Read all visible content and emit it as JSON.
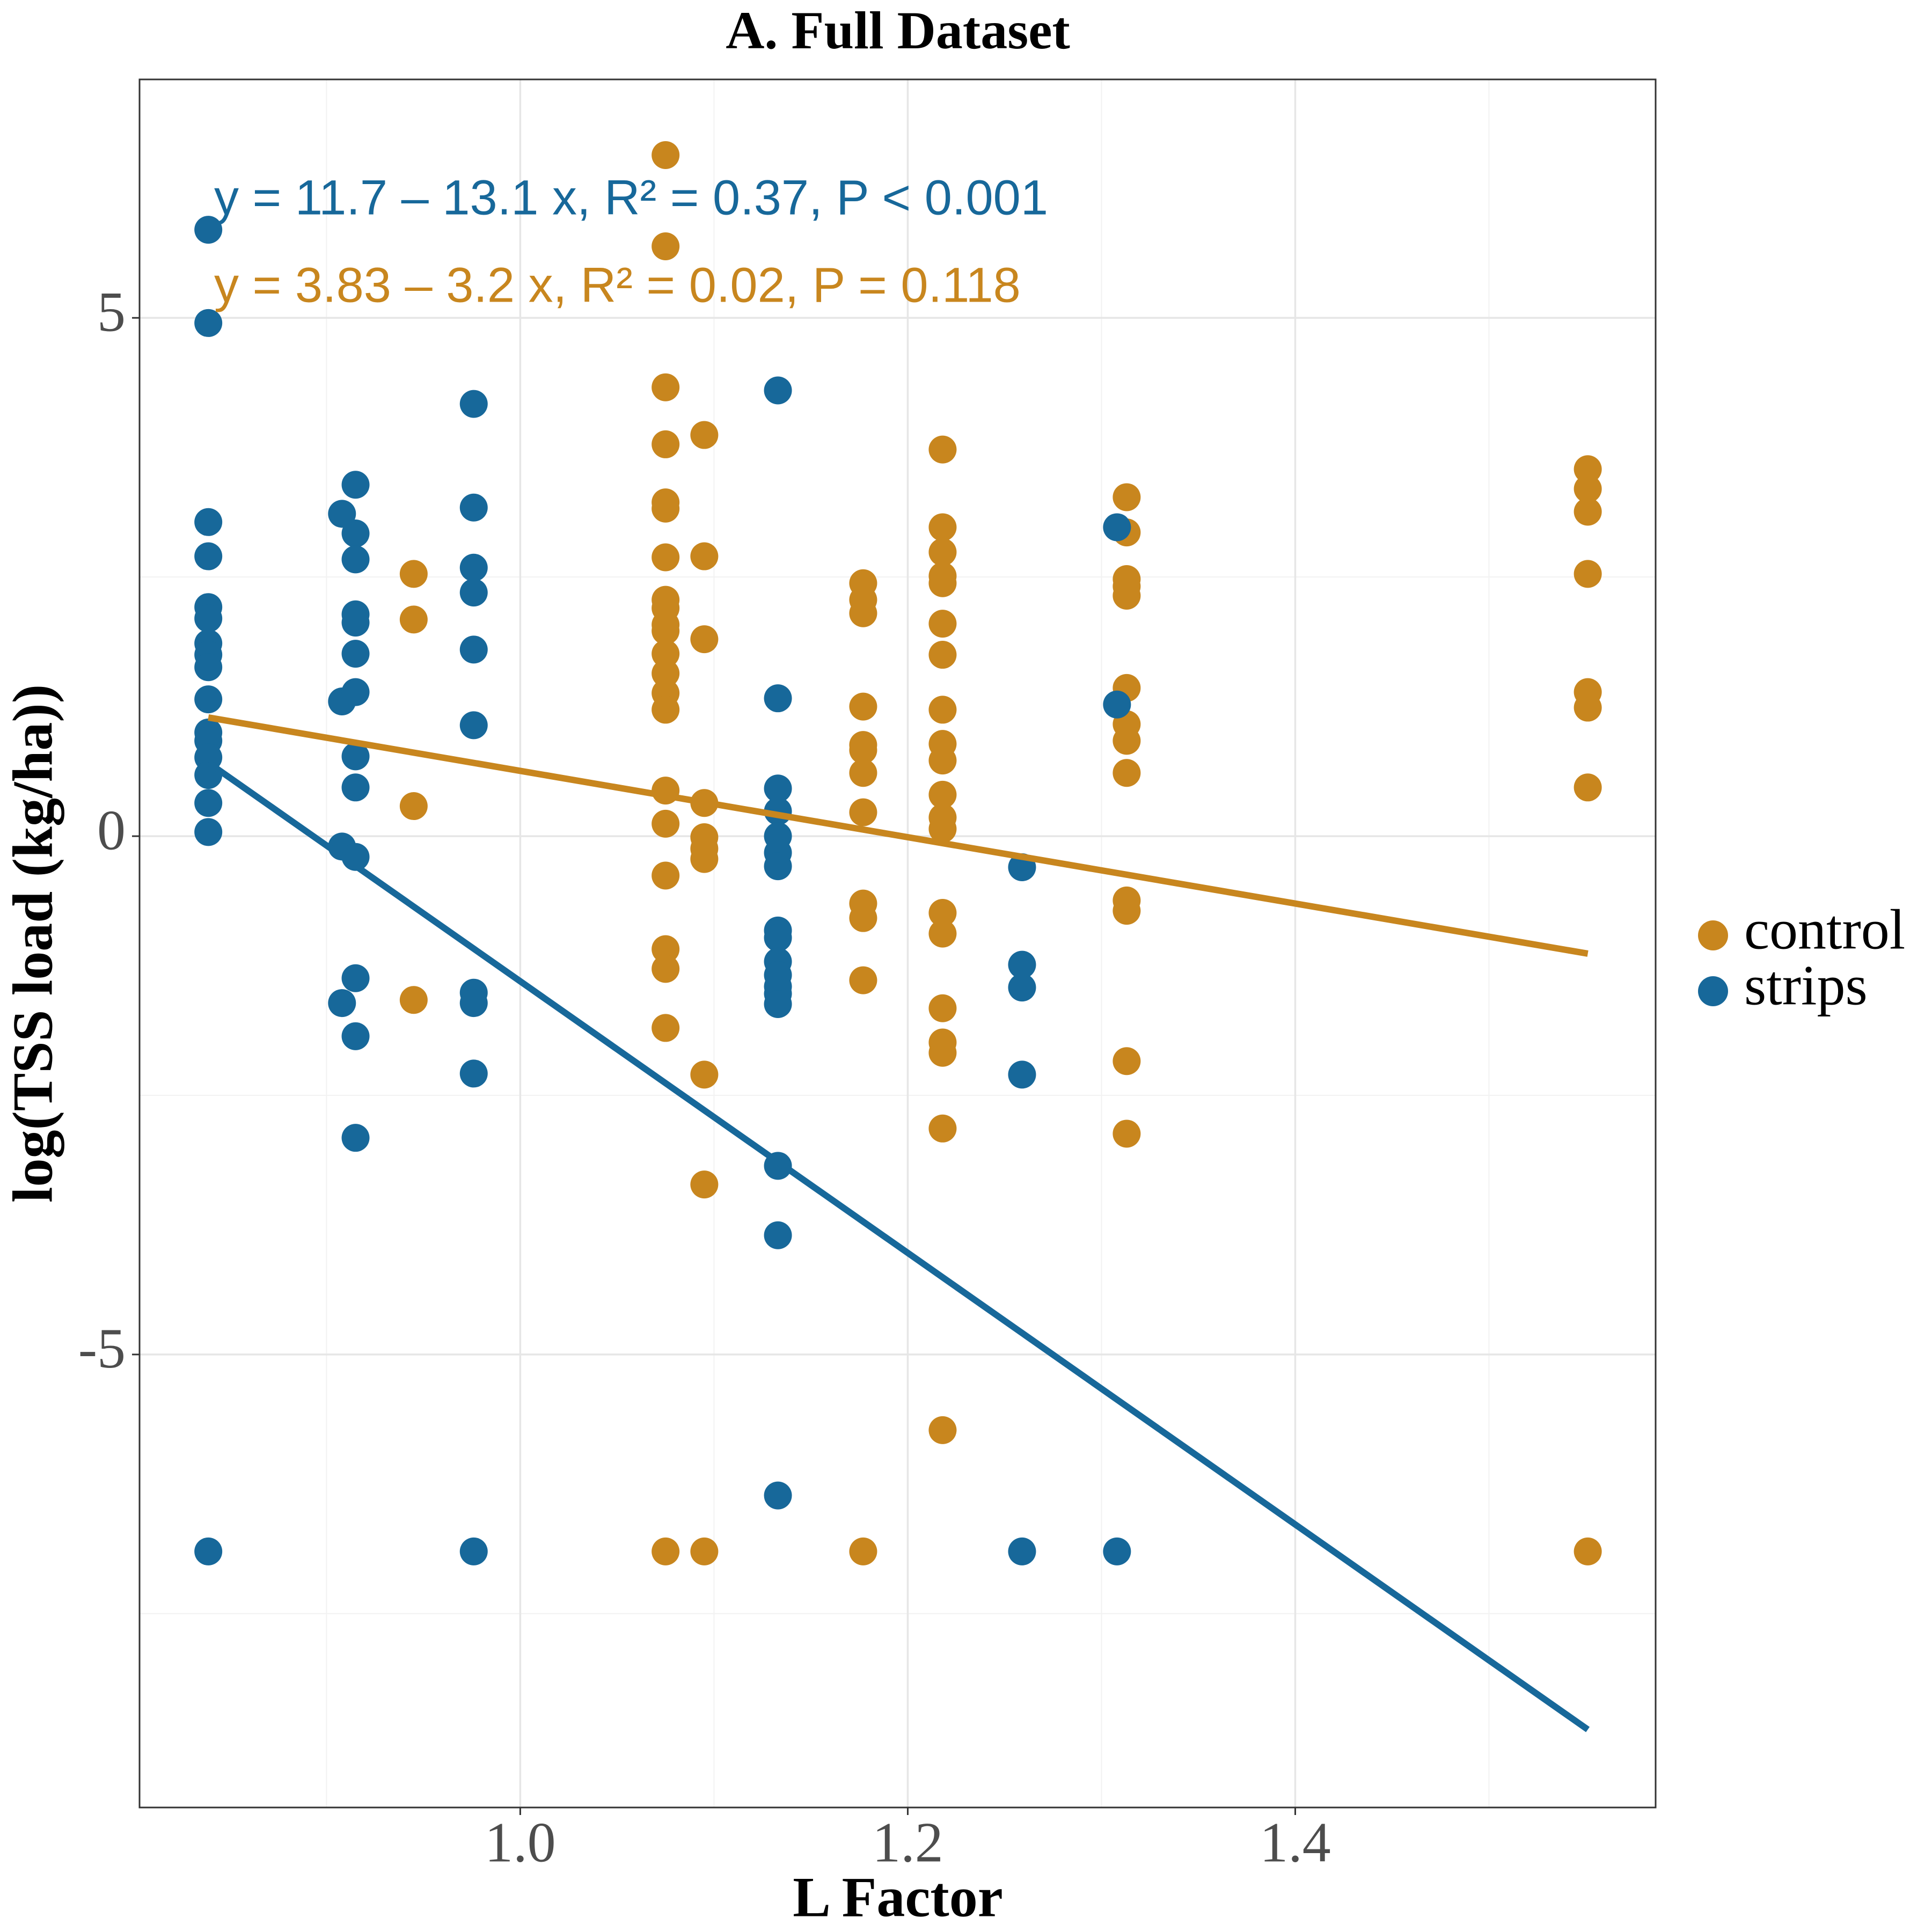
{
  "chart_data": {
    "type": "scatter",
    "title": "A. Full Dataset",
    "x_label": "L Factor",
    "y_label": "log(TSS load (kg/ha))",
    "xlim": [
      0.8035,
      1.586
    ],
    "ylim": [
      -9.37,
      7.3
    ],
    "xticks": [
      {
        "value": 1,
        "label": "1.0"
      },
      1.2,
      1.4
    ],
    "yticks": [
      -5,
      0,
      5
    ],
    "xminor": [
      0.9,
      1.1,
      1.3,
      1.5
    ],
    "yminor": [
      -7.5,
      -2.5,
      2.5
    ],
    "grid": true,
    "legend": "right",
    "series": [
      {
        "name": "control",
        "color": "#c8861e",
        "x": [
          0.945,
          0.945,
          0.945,
          0.945,
          1.075,
          1.075,
          1.075,
          1.075,
          1.075,
          1.075,
          1.075,
          1.075,
          1.075,
          1.075,
          1.075,
          1.075,
          1.075,
          1.075,
          1.075,
          1.075,
          1.075,
          1.075,
          1.075,
          1.075,
          1.075,
          1.075,
          1.095,
          1.095,
          1.095,
          1.095,
          1.095,
          1.095,
          1.095,
          1.095,
          1.095,
          1.095,
          1.177,
          1.177,
          1.177,
          1.177,
          1.177,
          1.177,
          1.177,
          1.177,
          1.177,
          1.177,
          1.177,
          1.177,
          1.218,
          1.218,
          1.218,
          1.218,
          1.218,
          1.218,
          1.218,
          1.218,
          1.218,
          1.218,
          1.218,
          1.218,
          1.218,
          1.218,
          1.218,
          1.218,
          1.218,
          1.218,
          1.218,
          1.218,
          1.313,
          1.313,
          1.313,
          1.313,
          1.313,
          1.313,
          1.313,
          1.313,
          1.313,
          1.313,
          1.313,
          1.313,
          1.313,
          1.551,
          1.551,
          1.551,
          1.551,
          1.551,
          1.551,
          1.551,
          1.551
        ],
        "values": [
          2.53,
          2.09,
          0.29,
          -1.58,
          6.57,
          5.69,
          4.33,
          3.78,
          3.22,
          3.16,
          2.69,
          2.28,
          2.2,
          2.04,
          1.98,
          1.76,
          1.57,
          1.38,
          1.22,
          0.44,
          0.12,
          -0.38,
          -1.09,
          -1.28,
          -1.85,
          -6.9,
          3.87,
          2.7,
          1.9,
          0.32,
          -0.01,
          -0.12,
          -0.22,
          -2.3,
          -3.36,
          -6.9,
          2.44,
          2.28,
          2.15,
          1.25,
          0.88,
          0.83,
          0.61,
          0.23,
          -0.65,
          -0.79,
          -1.39,
          -6.9,
          3.73,
          2.98,
          2.74,
          2.51,
          2.44,
          2.05,
          1.75,
          1.22,
          0.89,
          0.73,
          0.4,
          0.18,
          0.07,
          -0.74,
          -0.94,
          -1.66,
          -1.99,
          -2.09,
          -2.82,
          -5.73,
          3.27,
          2.93,
          2.48,
          2.41,
          2.32,
          1.43,
          1.08,
          0.92,
          0.61,
          -0.62,
          -0.72,
          -2.17,
          -2.87,
          3.54,
          3.35,
          3.13,
          2.53,
          1.39,
          1.24,
          0.47,
          -6.9
        ],
        "fit": {
          "x": [
            0.839,
            1.551
          ],
          "values": [
            1.145,
            -1.133
          ]
        },
        "annotation": "y = 3.83 – 3.2 x, R² = 0.02, P = 0.118"
      },
      {
        "name": "strips",
        "color": "#17689a",
        "x": [
          0.839,
          0.839,
          0.839,
          0.839,
          0.839,
          0.839,
          0.839,
          0.839,
          0.839,
          0.839,
          0.839,
          0.839,
          0.839,
          0.839,
          0.839,
          0.839,
          0.839,
          0.908,
          0.908,
          0.908,
          0.908,
          0.915,
          0.915,
          0.915,
          0.915,
          0.915,
          0.915,
          0.915,
          0.915,
          0.915,
          0.915,
          0.915,
          0.915,
          0.915,
          0.976,
          0.976,
          0.976,
          0.976,
          0.976,
          0.976,
          0.976,
          0.976,
          0.976,
          0.976,
          1.133,
          1.133,
          1.133,
          1.133,
          1.133,
          1.133,
          1.133,
          1.133,
          1.133,
          1.133,
          1.133,
          1.133,
          1.133,
          1.133,
          1.133,
          1.133,
          1.133,
          1.259,
          1.259,
          1.259,
          1.259,
          1.259,
          1.308,
          1.308,
          1.308
        ],
        "values": [
          5.85,
          4.95,
          3.03,
          2.7,
          2.21,
          2.1,
          1.86,
          1.75,
          1.63,
          1.32,
          1.0,
          0.92,
          0.76,
          0.59,
          0.32,
          0.04,
          -6.9,
          3.11,
          1.3,
          -0.1,
          -1.61,
          3.39,
          2.92,
          2.67,
          2.14,
          2.06,
          1.76,
          1.39,
          0.77,
          0.47,
          -0.2,
          -1.37,
          -1.93,
          -2.91,
          4.17,
          3.17,
          2.59,
          2.35,
          1.8,
          1.07,
          -1.51,
          -1.61,
          -2.29,
          -6.9,
          4.3,
          1.33,
          0.46,
          0.24,
          0,
          -0.16,
          -0.29,
          -0.91,
          -0.98,
          -1.21,
          -1.34,
          -1.45,
          -1.52,
          -1.62,
          -3.18,
          -3.85,
          -6.36,
          -0.3,
          -1.24,
          -1.46,
          -2.3,
          -6.9,
          2.98,
          1.27,
          -6.9
        ],
        "fit": {
          "x": [
            0.839,
            1.551
          ],
          "values": [
            0.709,
            -8.618
          ]
        },
        "annotation": "y = 11.7 – 13.1 x, R² = 0.37, P < 0.001"
      }
    ]
  }
}
